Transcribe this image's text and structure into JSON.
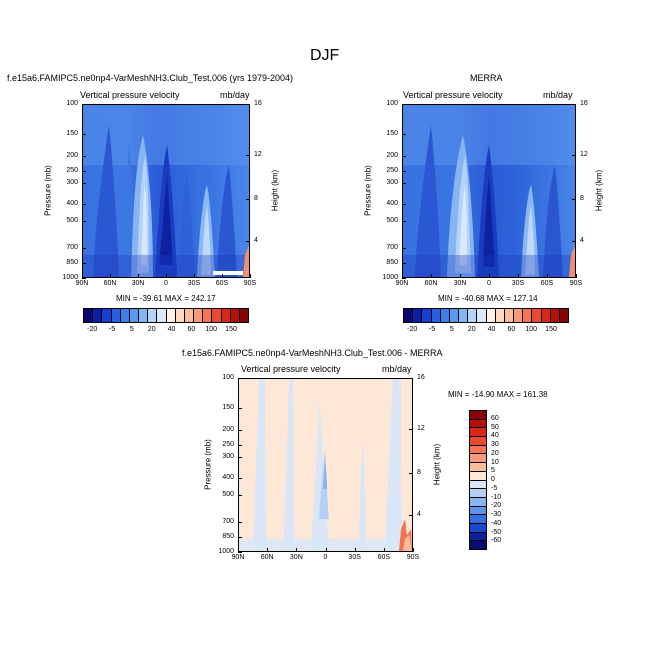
{
  "title": "DJF",
  "panels": [
    {
      "heading": "f.e15a6.FAMIPC5.ne0np4-VarMeshNH3.Club_Test.006 (yrs 1979-2004)",
      "left_label": "Vertical pressure velocity",
      "right_label": "mb/day",
      "minmax": "MIN = -39.61   MAX = 242.17",
      "ylabel": "Pressure (mb)",
      "y2label": "Height (km)"
    },
    {
      "heading": "MERRA",
      "left_label": "Vertical pressure velocity",
      "right_label": "mb/day",
      "minmax": "MIN = -40.68   MAX = 127.14",
      "ylabel": "Pressure (mb)",
      "y2label": "Height (km)"
    },
    {
      "heading": "f.e15a6.FAMIPC5.ne0np4-VarMeshNH3.Club_Test.006 - MERRA",
      "left_label": "Vertical pressure velocity",
      "right_label": "mb/day",
      "minmax": "MIN = -14.90   MAX = 161.38",
      "ylabel": "Pressure (mb)",
      "y2label": "Height (km)"
    }
  ],
  "xticks": [
    "90N",
    "60N",
    "30N",
    "0",
    "30S",
    "60S",
    "90S"
  ],
  "pressure_ticks": [
    "100",
    "150",
    "200",
    "250",
    "300",
    "400",
    "500",
    "700",
    "850",
    "1000"
  ],
  "height_ticks": [
    "4",
    "8",
    "12",
    "16"
  ],
  "colorbar_top": {
    "labels": [
      "-20",
      "-5",
      "5",
      "20",
      "40",
      "60",
      "100",
      "150"
    ],
    "colors": [
      "#0a0a6e",
      "#0c1fa8",
      "#1440d0",
      "#2460e0",
      "#3c7ee8",
      "#5c9af0",
      "#84b8f4",
      "#b4d4f8",
      "#dce8fa",
      "#fff2e4",
      "#fcd8c0",
      "#fbbc9c",
      "#f89a78",
      "#f47454",
      "#ec4a30",
      "#d82818",
      "#b41008",
      "#880404"
    ]
  },
  "colorbar_bottom": {
    "labels": [
      "60",
      "50",
      "40",
      "30",
      "20",
      "10",
      "5",
      "0",
      "-5",
      "-10",
      "-20",
      "-30",
      "-40",
      "-50",
      "-60"
    ],
    "colors": [
      "#880404",
      "#b41008",
      "#d82818",
      "#ec4a30",
      "#f47454",
      "#f89a78",
      "#fbbc9c",
      "#fde8d8",
      "#d8e6f8",
      "#b4d0f6",
      "#88b4f2",
      "#5c94ec",
      "#3270e0",
      "#1848cc",
      "#0c20a0",
      "#060c70"
    ]
  },
  "chart_data": [
    {
      "type": "heatmap",
      "title": "f.e15a6.FAMIPC5.ne0np4-VarMeshNH3.Club_Test.006 (yrs 1979-2004)",
      "variable": "Vertical pressure velocity",
      "units": "mb/day",
      "x_range": [
        "90N",
        "90S"
      ],
      "y_range_mb": [
        100,
        1000
      ],
      "min": -39.61,
      "max": 242.17
    },
    {
      "type": "heatmap",
      "title": "MERRA",
      "variable": "Vertical pressure velocity",
      "units": "mb/day",
      "x_range": [
        "90N",
        "90S"
      ],
      "y_range_mb": [
        100,
        1000
      ],
      "min": -40.68,
      "max": 127.14
    },
    {
      "type": "heatmap",
      "title": "f.e15a6.FAMIPC5.ne0np4-VarMeshNH3.Club_Test.006 - MERRA",
      "variable": "Vertical pressure velocity",
      "units": "mb/day",
      "x_range": [
        "90N",
        "90S"
      ],
      "y_range_mb": [
        100,
        1000
      ],
      "min": -14.9,
      "max": 161.38
    }
  ]
}
